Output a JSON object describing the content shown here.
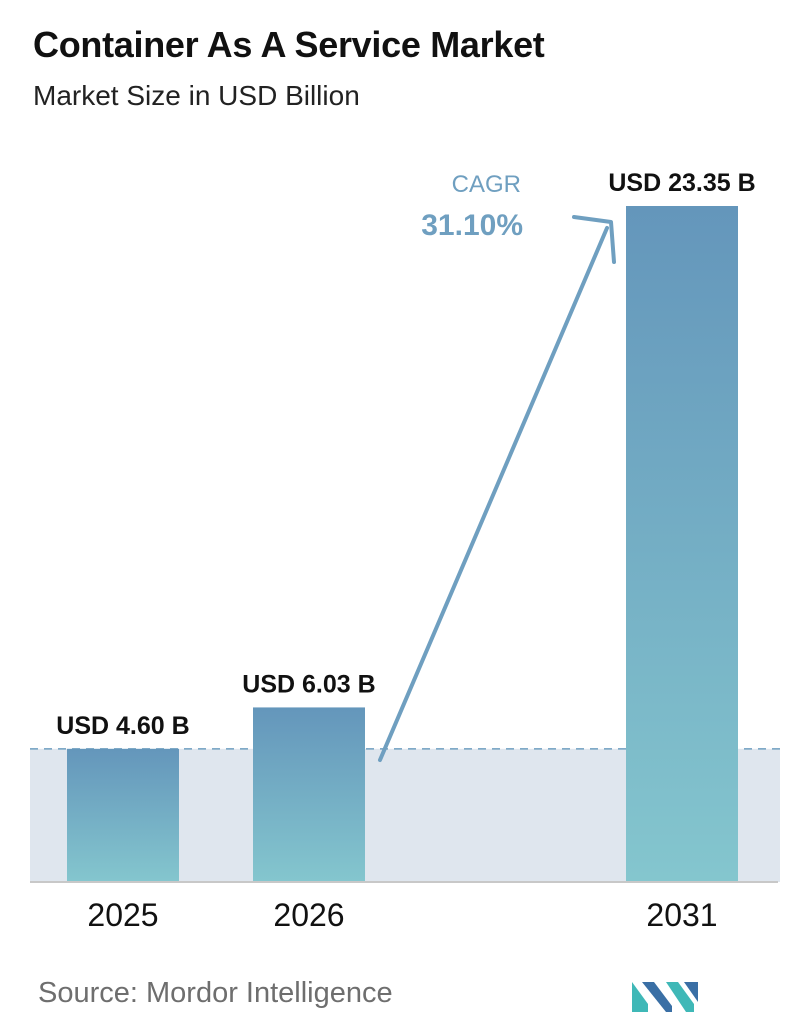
{
  "header": {
    "title": "Container As A Service Market",
    "subtitle": "Market Size in USD Billion"
  },
  "cagr": {
    "label": "CAGR",
    "value": "31.10%"
  },
  "source": {
    "text": "Source:  Mordor Intelligence"
  },
  "colors": {
    "bar_top": "#6496bb",
    "bar_bottom": "#84c6ce",
    "band": "#dfe6ee",
    "baseline_dashed": "#6f9fc0",
    "arrow": "#6f9fc0",
    "cagr_text": "#6f9fc0",
    "logo_teal": "#3fb8b7",
    "logo_blue": "#3a6fa5"
  },
  "chart_data": {
    "type": "bar",
    "title": "Container As A Service Market",
    "subtitle": "Market Size in USD Billion",
    "categories": [
      "2025",
      "2026",
      "2031"
    ],
    "values": [
      4.6,
      6.03,
      23.35
    ],
    "value_labels": [
      "USD 4.60 B",
      "USD 6.03 B",
      "USD 23.35 B"
    ],
    "xlabel": "",
    "ylabel": "",
    "ylim": [
      0,
      23.35
    ],
    "grid": false,
    "legend": "none"
  }
}
